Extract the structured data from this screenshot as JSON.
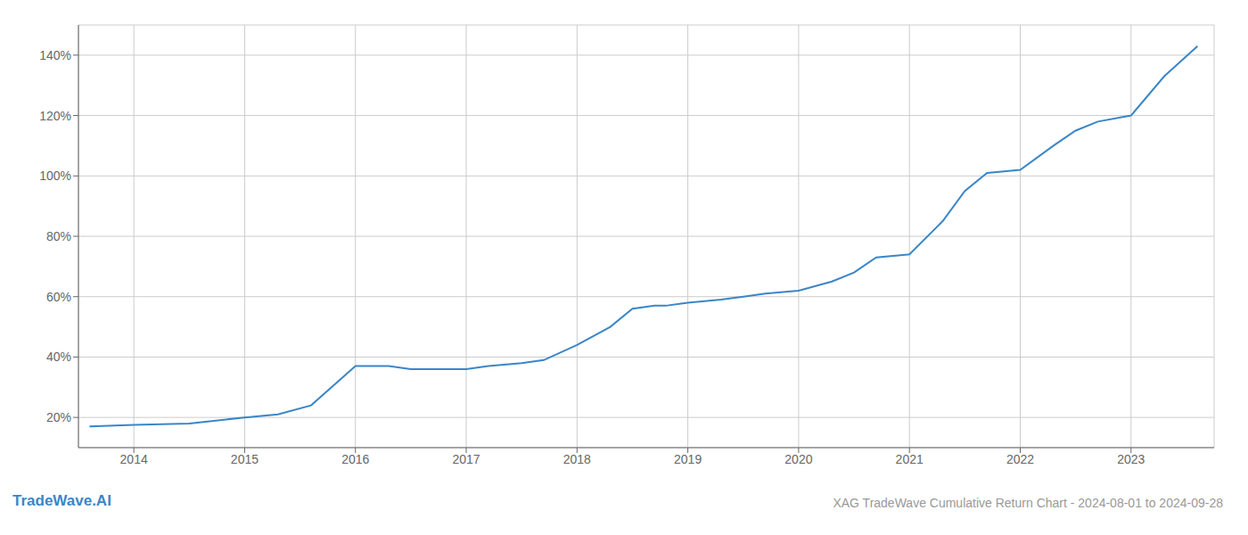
{
  "chart_data": {
    "type": "line",
    "title": "XAG TradeWave Cumulative Return Chart - 2024-08-01 to 2024-09-28",
    "annotations": [
      "TradeWave.AI"
    ],
    "x": [
      2013.6,
      2014.0,
      2014.5,
      2015.0,
      2015.3,
      2015.6,
      2016.0,
      2016.3,
      2016.5,
      2016.8,
      2017.0,
      2017.2,
      2017.5,
      2017.7,
      2018.0,
      2018.3,
      2018.5,
      2018.7,
      2018.8,
      2019.0,
      2019.3,
      2019.5,
      2019.7,
      2020.0,
      2020.3,
      2020.5,
      2020.7,
      2021.0,
      2021.3,
      2021.5,
      2021.7,
      2022.0,
      2022.3,
      2022.5,
      2022.7,
      2023.0,
      2023.3,
      2023.6
    ],
    "values": [
      17,
      17.5,
      18,
      20,
      21,
      24,
      37,
      37,
      36,
      36,
      36,
      37,
      38,
      39,
      44,
      50,
      56,
      57,
      57,
      58,
      59,
      60,
      61,
      62,
      65,
      68,
      73,
      74,
      85,
      95,
      101,
      102,
      110,
      115,
      118,
      120,
      133,
      143
    ],
    "color": "#3a86c8",
    "xlim": [
      2013.5,
      2023.75
    ],
    "ylim": [
      10,
      150
    ],
    "xticks": [
      2014,
      2015,
      2016,
      2017,
      2018,
      2019,
      2020,
      2021,
      2022,
      2023
    ],
    "yticks": [
      {
        "value": 20,
        "label": "20%"
      },
      {
        "value": 40,
        "label": "40%"
      },
      {
        "value": 60,
        "label": "60%"
      },
      {
        "value": 80,
        "label": "80%"
      },
      {
        "value": 100,
        "label": "100%"
      },
      {
        "value": 120,
        "label": "120%"
      },
      {
        "value": 140,
        "label": "140%"
      }
    ],
    "grid": true
  }
}
